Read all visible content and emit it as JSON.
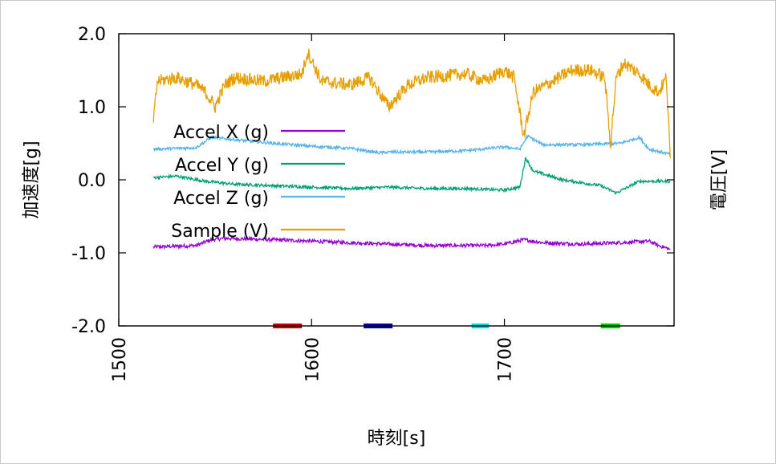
{
  "chart_data": {
    "type": "line",
    "xlabel": "時刻[s]",
    "ylabel": "加速度[g]",
    "y2label": "電圧[V]",
    "xlim": [
      1500,
      1788
    ],
    "ylim": [
      -2.0,
      2.0
    ],
    "x_ticks": [
      1500,
      1600,
      1700
    ],
    "x_tick_labels": [
      "1500",
      "1600",
      "1700"
    ],
    "y_ticks": [
      2.0,
      1.0,
      0.0,
      -1.0,
      -2.0
    ],
    "y_tick_labels": [
      "2.0",
      "1.0",
      "0.0",
      "-1.0",
      "-2.0"
    ],
    "grid": false,
    "legend_position": "left",
    "series": [
      {
        "name": "Accel X (g)",
        "color": "#9400d3",
        "x": [
          1518,
          1540,
          1548,
          1555,
          1580,
          1620,
          1660,
          1690,
          1700,
          1710,
          1720,
          1740,
          1760,
          1775,
          1780,
          1786
        ],
        "y": [
          -0.92,
          -0.9,
          -0.82,
          -0.8,
          -0.82,
          -0.86,
          -0.9,
          -0.9,
          -0.88,
          -0.82,
          -0.86,
          -0.88,
          -0.86,
          -0.84,
          -0.9,
          -0.95
        ]
      },
      {
        "name": "Accel Y (g)",
        "color": "#009e73",
        "x": [
          1518,
          1530,
          1545,
          1560,
          1580,
          1600,
          1620,
          1640,
          1660,
          1680,
          1700,
          1708,
          1711,
          1715,
          1730,
          1750,
          1758,
          1770,
          1786
        ],
        "y": [
          0.03,
          0.05,
          -0.02,
          -0.06,
          -0.08,
          -0.1,
          -0.12,
          -0.1,
          -0.12,
          -0.12,
          -0.14,
          -0.1,
          0.3,
          0.12,
          0.0,
          -0.08,
          -0.18,
          -0.02,
          -0.02
        ]
      },
      {
        "name": "Accel Z (g)",
        "color": "#56b4e9",
        "x": [
          1518,
          1540,
          1548,
          1560,
          1580,
          1600,
          1620,
          1635,
          1640,
          1660,
          1680,
          1700,
          1708,
          1712,
          1720,
          1740,
          1760,
          1770,
          1775,
          1786
        ],
        "y": [
          0.42,
          0.44,
          0.58,
          0.55,
          0.5,
          0.46,
          0.43,
          0.37,
          0.38,
          0.38,
          0.4,
          0.45,
          0.42,
          0.6,
          0.48,
          0.48,
          0.5,
          0.58,
          0.42,
          0.35
        ]
      },
      {
        "name": "Sample (V)",
        "color": "#e69f00",
        "x": [
          1518,
          1520,
          1530,
          1540,
          1545,
          1550,
          1555,
          1560,
          1575,
          1585,
          1595,
          1598,
          1605,
          1620,
          1630,
          1640,
          1650,
          1660,
          1680,
          1690,
          1700,
          1705,
          1710,
          1715,
          1725,
          1735,
          1745,
          1752,
          1755,
          1758,
          1762,
          1770,
          1775,
          1780,
          1784,
          1786
        ],
        "y": [
          0.8,
          1.35,
          1.4,
          1.3,
          1.2,
          1.0,
          1.3,
          1.4,
          1.35,
          1.4,
          1.45,
          1.75,
          1.35,
          1.3,
          1.4,
          1.0,
          1.3,
          1.4,
          1.45,
          1.35,
          1.5,
          1.4,
          0.6,
          1.2,
          1.35,
          1.5,
          1.5,
          1.4,
          0.5,
          1.4,
          1.6,
          1.45,
          1.3,
          1.2,
          1.4,
          0.3
        ]
      }
    ],
    "markers": [
      {
        "x_start": 1580,
        "x_end": 1595,
        "y": -2.0,
        "color": "#c0000c"
      },
      {
        "x_start": 1627,
        "x_end": 1642,
        "y": -2.0,
        "color": "#0000a0"
      },
      {
        "x_start": 1683,
        "x_end": 1692,
        "y": -2.0,
        "color": "#00d8e0"
      },
      {
        "x_start": 1750,
        "x_end": 1760,
        "y": -2.0,
        "color": "#00c800"
      }
    ]
  }
}
